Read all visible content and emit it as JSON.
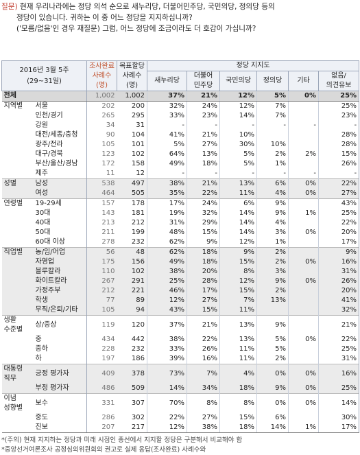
{
  "question": {
    "label": "질문)",
    "line1": " 현재 우리나라에는 정당 의석 순으로 새누리당, 더불어민주당, 국민의당, 정의당 등의",
    "line2": "정당이 있습니다. 귀하는 이 중 어느 정당을 지지하십니까?",
    "line3": "('모름/없음'인 경우 재질문) 그럼, 어느 정당에 조금이라도 더 호감이 가십니까?"
  },
  "header": {
    "date_line1": "2016년 3월 5주",
    "date_line2": "(29~31일)",
    "n_completed_top": "조사완료",
    "n_completed_bottom": "사례수",
    "n_completed_unit": "(명)",
    "n_target_top": "목표할당",
    "n_target_bottom": "사례수",
    "n_target_unit": "(명)",
    "party_group": "정당 지지도",
    "parties": [
      "새누리당",
      "더불어\n민주당",
      "국민의당",
      "정의당",
      "기타",
      "없음/\n의견유보"
    ]
  },
  "rows": [
    {
      "group": "전체",
      "sub": "",
      "n1": "1,002",
      "n2": "1,002",
      "v": [
        "37%",
        "21%",
        "12%",
        "5%",
        "0%",
        "25%"
      ],
      "total": true
    },
    {
      "group": "지역별",
      "sub": "서울",
      "n1": "202",
      "n2": "200",
      "v": [
        "32%",
        "24%",
        "12%",
        "7%",
        "",
        "25%"
      ],
      "gs": true
    },
    {
      "group": "",
      "sub": "인천/경기",
      "n1": "265",
      "n2": "295",
      "v": [
        "33%",
        "23%",
        "14%",
        "7%",
        "",
        "23%"
      ]
    },
    {
      "group": "",
      "sub": "강원",
      "n1": "34",
      "n2": "31",
      "v": [
        "-",
        "-",
        "-",
        "-",
        "-",
        "-"
      ]
    },
    {
      "group": "",
      "sub": "대전/세종/충청",
      "n1": "90",
      "n2": "104",
      "v": [
        "41%",
        "21%",
        "10%",
        "",
        "",
        "28%"
      ]
    },
    {
      "group": "",
      "sub": "광주/전라",
      "n1": "105",
      "n2": "101",
      "v": [
        "5%",
        "27%",
        "30%",
        "10%",
        "",
        "28%"
      ]
    },
    {
      "group": "",
      "sub": "대구/경북",
      "n1": "123",
      "n2": "102",
      "v": [
        "64%",
        "13%",
        "5%",
        "2%",
        "2%",
        "15%"
      ]
    },
    {
      "group": "",
      "sub": "부산/울산/경남",
      "n1": "172",
      "n2": "158",
      "v": [
        "49%",
        "18%",
        "5%",
        "1%",
        "",
        "26%"
      ]
    },
    {
      "group": "",
      "sub": "제주",
      "n1": "11",
      "n2": "12",
      "v": [
        "-",
        "-",
        "-",
        "-",
        "-",
        "-"
      ]
    },
    {
      "group": "성별",
      "sub": "남성",
      "n1": "538",
      "n2": "497",
      "v": [
        "38%",
        "21%",
        "13%",
        "6%",
        "0%",
        "22%"
      ],
      "gs": true,
      "shade": true
    },
    {
      "group": "",
      "sub": "여성",
      "n1": "464",
      "n2": "505",
      "v": [
        "35%",
        "22%",
        "11%",
        "4%",
        "0%",
        "27%"
      ],
      "shade": true
    },
    {
      "group": "연령별",
      "sub": "19-29세",
      "n1": "157",
      "n2": "178",
      "v": [
        "17%",
        "24%",
        "6%",
        "9%",
        "",
        "43%"
      ],
      "gs": true
    },
    {
      "group": "",
      "sub": "30대",
      "n1": "143",
      "n2": "181",
      "v": [
        "19%",
        "32%",
        "14%",
        "9%",
        "1%",
        "25%"
      ]
    },
    {
      "group": "",
      "sub": "40대",
      "n1": "213",
      "n2": "212",
      "v": [
        "31%",
        "29%",
        "14%",
        "4%",
        "",
        "22%"
      ]
    },
    {
      "group": "",
      "sub": "50대",
      "n1": "211",
      "n2": "199",
      "v": [
        "48%",
        "15%",
        "14%",
        "3%",
        "0%",
        "20%"
      ]
    },
    {
      "group": "",
      "sub": "60대 이상",
      "n1": "278",
      "n2": "232",
      "v": [
        "62%",
        "9%",
        "12%",
        "1%",
        "",
        "17%"
      ]
    },
    {
      "group": "직업별",
      "sub": "농/임/어업",
      "n1": "56",
      "n2": "48",
      "v": [
        "62%",
        "18%",
        "9%",
        "2%",
        "",
        "9%"
      ],
      "gs": true,
      "shade": true
    },
    {
      "group": "",
      "sub": "자영업",
      "n1": "175",
      "n2": "156",
      "v": [
        "49%",
        "18%",
        "15%",
        "2%",
        "0%",
        "16%"
      ],
      "shade": true
    },
    {
      "group": "",
      "sub": "블루칼라",
      "n1": "110",
      "n2": "102",
      "v": [
        "38%",
        "20%",
        "8%",
        "3%",
        "",
        "31%"
      ],
      "shade": true
    },
    {
      "group": "",
      "sub": "화이트칼라",
      "n1": "267",
      "n2": "291",
      "v": [
        "25%",
        "28%",
        "12%",
        "9%",
        "0%",
        "26%"
      ],
      "shade": true
    },
    {
      "group": "",
      "sub": "가정주부",
      "n1": "212",
      "n2": "221",
      "v": [
        "46%",
        "17%",
        "15%",
        "2%",
        "",
        "20%"
      ],
      "shade": true
    },
    {
      "group": "",
      "sub": "학생",
      "n1": "77",
      "n2": "89",
      "v": [
        "12%",
        "27%",
        "7%",
        "13%",
        "",
        "41%"
      ],
      "shade": true
    },
    {
      "group": "",
      "sub": "무직/은퇴/기타",
      "n1": "105",
      "n2": "94",
      "v": [
        "43%",
        "15%",
        "11%",
        "",
        "",
        "32%"
      ],
      "shade": true
    },
    {
      "group": "생활\n수준별",
      "sub": "상/중상",
      "n1": "119",
      "n2": "120",
      "v": [
        "37%",
        "21%",
        "13%",
        "9%",
        "",
        "21%"
      ],
      "gs": true
    },
    {
      "group": "",
      "sub": "중",
      "n1": "434",
      "n2": "442",
      "v": [
        "38%",
        "22%",
        "13%",
        "5%",
        "0%",
        "22%"
      ]
    },
    {
      "group": "",
      "sub": "중하",
      "n1": "228",
      "n2": "232",
      "v": [
        "33%",
        "26%",
        "11%",
        "5%",
        "",
        "25%"
      ]
    },
    {
      "group": "",
      "sub": "하",
      "n1": "197",
      "n2": "186",
      "v": [
        "39%",
        "16%",
        "11%",
        "2%",
        "",
        "31%"
      ]
    },
    {
      "group": "대통령\n직무",
      "sub": "긍정 평가자",
      "n1": "409",
      "n2": "378",
      "v": [
        "73%",
        "7%",
        "4%",
        "0%",
        "0%",
        "16%"
      ],
      "gs": true,
      "shade": true
    },
    {
      "group": "",
      "sub": "부정 평가자",
      "n1": "486",
      "n2": "509",
      "v": [
        "14%",
        "34%",
        "18%",
        "9%",
        "0%",
        "25%"
      ],
      "shade": true
    },
    {
      "group": "이념\n성향별",
      "sub": "보수",
      "n1": "331",
      "n2": "307",
      "v": [
        "70%",
        "8%",
        "8%",
        "0%",
        "0%",
        "14%"
      ],
      "gs": true
    },
    {
      "group": "",
      "sub": "중도",
      "n1": "286",
      "n2": "302",
      "v": [
        "22%",
        "27%",
        "15%",
        "6%",
        "",
        "30%"
      ]
    },
    {
      "group": "",
      "sub": "진보",
      "n1": "207",
      "n2": "217",
      "v": [
        "12%",
        "38%",
        "18%",
        "14%",
        "1%",
        "17%"
      ]
    }
  ],
  "notes": {
    "line1": "*(주의) 현재 지지하는 정당과 미래 시점인 총선에서 지지할 정당은 구분해서 비교해야 함",
    "line2": "*중앙선거여론조사 공정심의위원회의 권고로 실제 응답(조사완료) 사례수와"
  }
}
